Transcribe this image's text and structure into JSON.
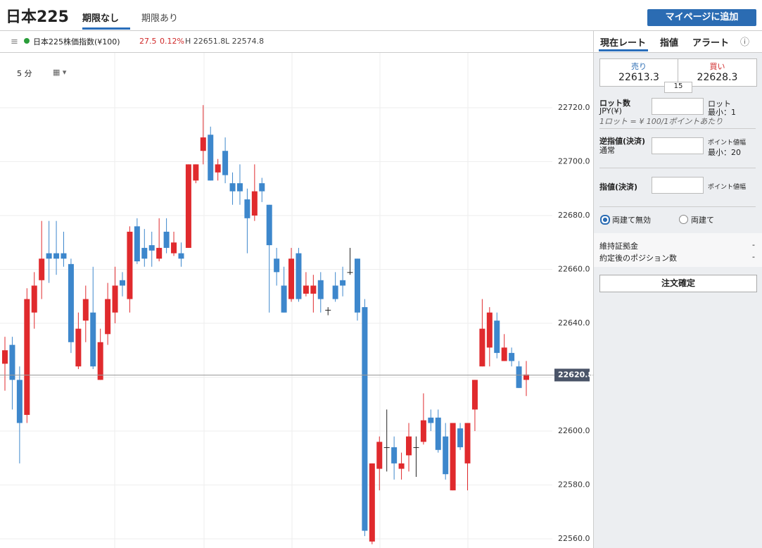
{
  "header": {
    "title": "日本225",
    "tabs": [
      "期限なし",
      "期限あり"
    ],
    "add_button": "マイページに追加"
  },
  "info_bar": {
    "instrument": "日本225株価指数(¥100)",
    "change": "27.5",
    "change_pct": "0.12%",
    "high": "H 22651.8",
    "low": "L 22574.8"
  },
  "toolbar": {
    "interval": "5 分"
  },
  "panel": {
    "tabs": [
      "現在レート",
      "指値",
      "アラート"
    ],
    "sell_label": "売り",
    "sell_price": "22613.3",
    "buy_label": "買い",
    "buy_price": "22628.3",
    "spread": "15",
    "lot_label": "ロット数",
    "lot_currency": "JPY(¥)",
    "lot_unit": "ロット",
    "lot_min": "最小：1",
    "lot_note": "1ロット = ¥ 100/1ポイントあたり",
    "stop_label": "逆指値(決済)",
    "stop_mode": "通常",
    "stop_unit": "ポイント値幅",
    "stop_min": "最小：20",
    "limit_label": "指値(決済)",
    "limit_unit": "ポイント値幅",
    "hedge_off": "両建て無効",
    "hedge_on": "両建て",
    "margin_label": "維持証拠金",
    "margin_value": "-",
    "positions_label": "約定後のポジション数",
    "positions_value": "-",
    "confirm_button": "注文確定"
  },
  "chart_data": {
    "type": "candlestick",
    "up_color": "#e02a2d",
    "down_color": "#3d87cc",
    "grid": true,
    "ylim": [
      22556.6,
      22740.4
    ],
    "yticks": [
      {
        "value": 22560,
        "label": "22560.0"
      },
      {
        "value": 22580,
        "label": "22580.0"
      },
      {
        "value": 22600,
        "label": "22600.0"
      },
      {
        "value": 22620,
        "label": "22620.0"
      },
      {
        "value": 22640,
        "label": "22640.0"
      },
      {
        "value": 22660,
        "label": "22660.0"
      },
      {
        "value": 22680,
        "label": "22680.0"
      },
      {
        "value": 22700,
        "label": "22700.0"
      },
      {
        "value": 22720,
        "label": "22720.0"
      }
    ],
    "current_price": 22620.8,
    "open": [
      22625,
      22632,
      22619,
      22606,
      22644,
      22656,
      22666,
      22666,
      22666,
      22662,
      22624,
      22641,
      22644,
      22619,
      22636,
      22644,
      22656,
      22649,
      22676,
      22668,
      22669,
      22664,
      22674,
      22666,
      22666,
      22668,
      22693,
      22704,
      22710,
      22696,
      22704,
      22692,
      22692,
      22686,
      22680,
      22692,
      22684,
      22664,
      22654,
      22649,
      22666,
      22651,
      22651,
      22656,
      22645,
      22654,
      22656,
      22659,
      22664,
      22646,
      22559,
      22586,
      22594,
      22594,
      22586,
      22591,
      22594,
      22596,
      22605,
      22605,
      22598,
      22578,
      22601,
      22588,
      22608,
      22624,
      22631,
      22641,
      22626,
      22629,
      22624,
      22619
    ],
    "high": [
      22635,
      22635,
      22624,
      22653,
      22659,
      22678,
      22678,
      22678,
      22674,
      22664,
      22644,
      22654,
      22661,
      22638,
      22655,
      22661,
      22659,
      22676,
      22679,
      22675,
      22674,
      22679,
      22679,
      22674,
      22670,
      22699,
      22699,
      22721,
      22713,
      22701,
      22709,
      22696,
      22699,
      22690,
      22699,
      22694,
      22684,
      22668,
      22661,
      22668,
      22668,
      22659,
      22658,
      22659,
      22646,
      22659,
      22661,
      22668,
      22664,
      22649,
      22588,
      22598,
      22608,
      22598,
      22592,
      22603,
      22598,
      22614,
      22608,
      22608,
      22603,
      22603,
      22603,
      22603,
      22619,
      22649,
      22646,
      22644,
      22636,
      22631,
      22626,
      22626
    ],
    "low": [
      22615,
      22608,
      22588,
      22603,
      22638,
      22649,
      22655,
      22658,
      22661,
      22629,
      22623,
      22633,
      22623,
      22619,
      22632,
      22640,
      22650,
      22644,
      22662,
      22661,
      22661,
      22663,
      22666,
      22665,
      22661,
      22668,
      22692,
      22699,
      22693,
      22693,
      22692,
      22684,
      22684,
      22666,
      22678,
      22685,
      22644,
      22654,
      22644,
      22648,
      22648,
      22650,
      22644,
      22644,
      22643,
      22648,
      22650,
      22658,
      22641,
      22561,
      22558,
      22578,
      22585,
      22582,
      22582,
      22585,
      22583,
      22595,
      22600,
      22592,
      22582,
      22578,
      22593,
      22578,
      22600,
      22624,
      22624,
      22627,
      22626,
      22624,
      22616,
      22613
    ],
    "close": [
      22630,
      22619,
      22603,
      22649,
      22654,
      22664,
      22664,
      22664,
      22664,
      22633,
      22638,
      22649,
      22624,
      22633,
      22649,
      22654,
      22654,
      22674,
      22663,
      22664,
      22667,
      22668,
      22668,
      22670,
      22664,
      22699,
      22699,
      22709,
      22693,
      22699,
      22695,
      22689,
      22689,
      22679,
      22689,
      22689,
      22669,
      22659,
      22644,
      22664,
      22649,
      22654,
      22654,
      22649,
      22645,
      22649,
      22654,
      22659,
      22644,
      22563,
      22588,
      22596,
      22594,
      22588,
      22588,
      22598,
      22594,
      22604,
      22603,
      22593,
      22584,
      22603,
      22594,
      22603,
      22619,
      22638,
      22644,
      22629,
      22631,
      22626,
      22616,
      22621
    ]
  }
}
